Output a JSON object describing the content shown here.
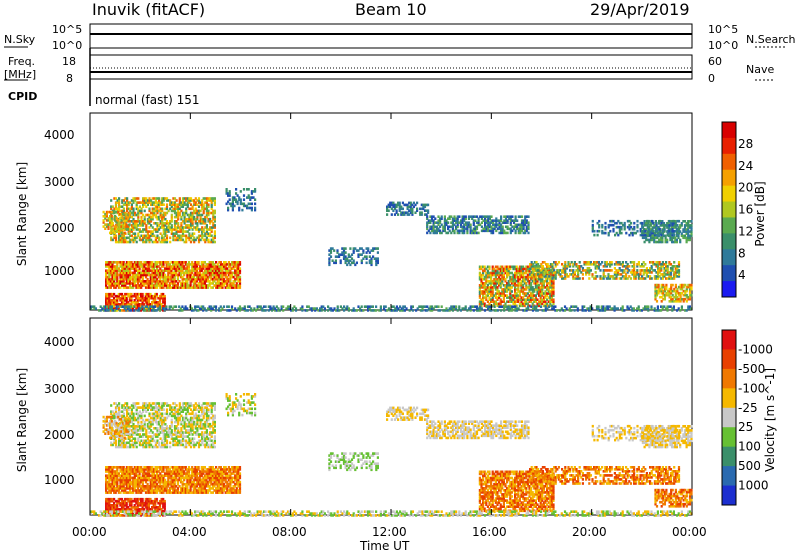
{
  "header": {
    "station": "Inuvik (fitACF)",
    "beam": "Beam 10",
    "date": "29/Apr/2019"
  },
  "top_panels": {
    "nsky_label": "N.Sky",
    "nsky_ticks": [
      "10^5",
      "10^0"
    ],
    "nsearch_label": "N.Search",
    "nsearch_ticks": [
      "10^5",
      "10^0"
    ],
    "freq_label": "Freq.",
    "freq_unit": "[MHz]",
    "freq_ticks": [
      "18",
      "8"
    ],
    "nave_label": "Nave",
    "nave_ticks": [
      "60",
      "0"
    ],
    "cpid_label": "CPID",
    "cpid_value": "normal (fast) 151"
  },
  "chart_data": [
    {
      "type": "heatmap",
      "name": "power",
      "ylabel": "Slant Range [km]",
      "y_ticks": [
        "1000",
        "2000",
        "3000",
        "4000"
      ],
      "ylim": [
        180,
        4500
      ],
      "xlim_hours": [
        0,
        24
      ],
      "colorbar_label": "Power [dB]",
      "colorbar_ticks": [
        "4",
        "8",
        "12",
        "16",
        "20",
        "24",
        "28"
      ],
      "colorbar_colors": [
        "#1b1bf0",
        "#1f4fb0",
        "#2f7a9a",
        "#3a8f6a",
        "#5aaa50",
        "#b0c820",
        "#f0d000",
        "#f5a000",
        "#f06000",
        "#e82000",
        "#d80000"
      ]
    },
    {
      "type": "heatmap",
      "name": "velocity",
      "ylabel": "Slant Range [km]",
      "y_ticks": [
        "1000",
        "2000",
        "3000",
        "4000"
      ],
      "ylim": [
        180,
        4500
      ],
      "xlim_hours": [
        0,
        24
      ],
      "colorbar_label": "Velocity [m s^-1]",
      "colorbar_ticks": [
        "1000",
        "500",
        "100",
        "25",
        "-25",
        "-100",
        "-500",
        "-1000"
      ],
      "colorbar_colors": [
        "#1c2fd0",
        "#2a6ab0",
        "#3a8f6a",
        "#66c033",
        "#c8c8c8",
        "#f5b800",
        "#f07800",
        "#e84000",
        "#e01010"
      ]
    }
  ],
  "x_axis": {
    "ticks": [
      "00:00",
      "04:00",
      "08:00",
      "12:00",
      "16:00",
      "20:00",
      "00:00"
    ],
    "label": "Time UT"
  }
}
